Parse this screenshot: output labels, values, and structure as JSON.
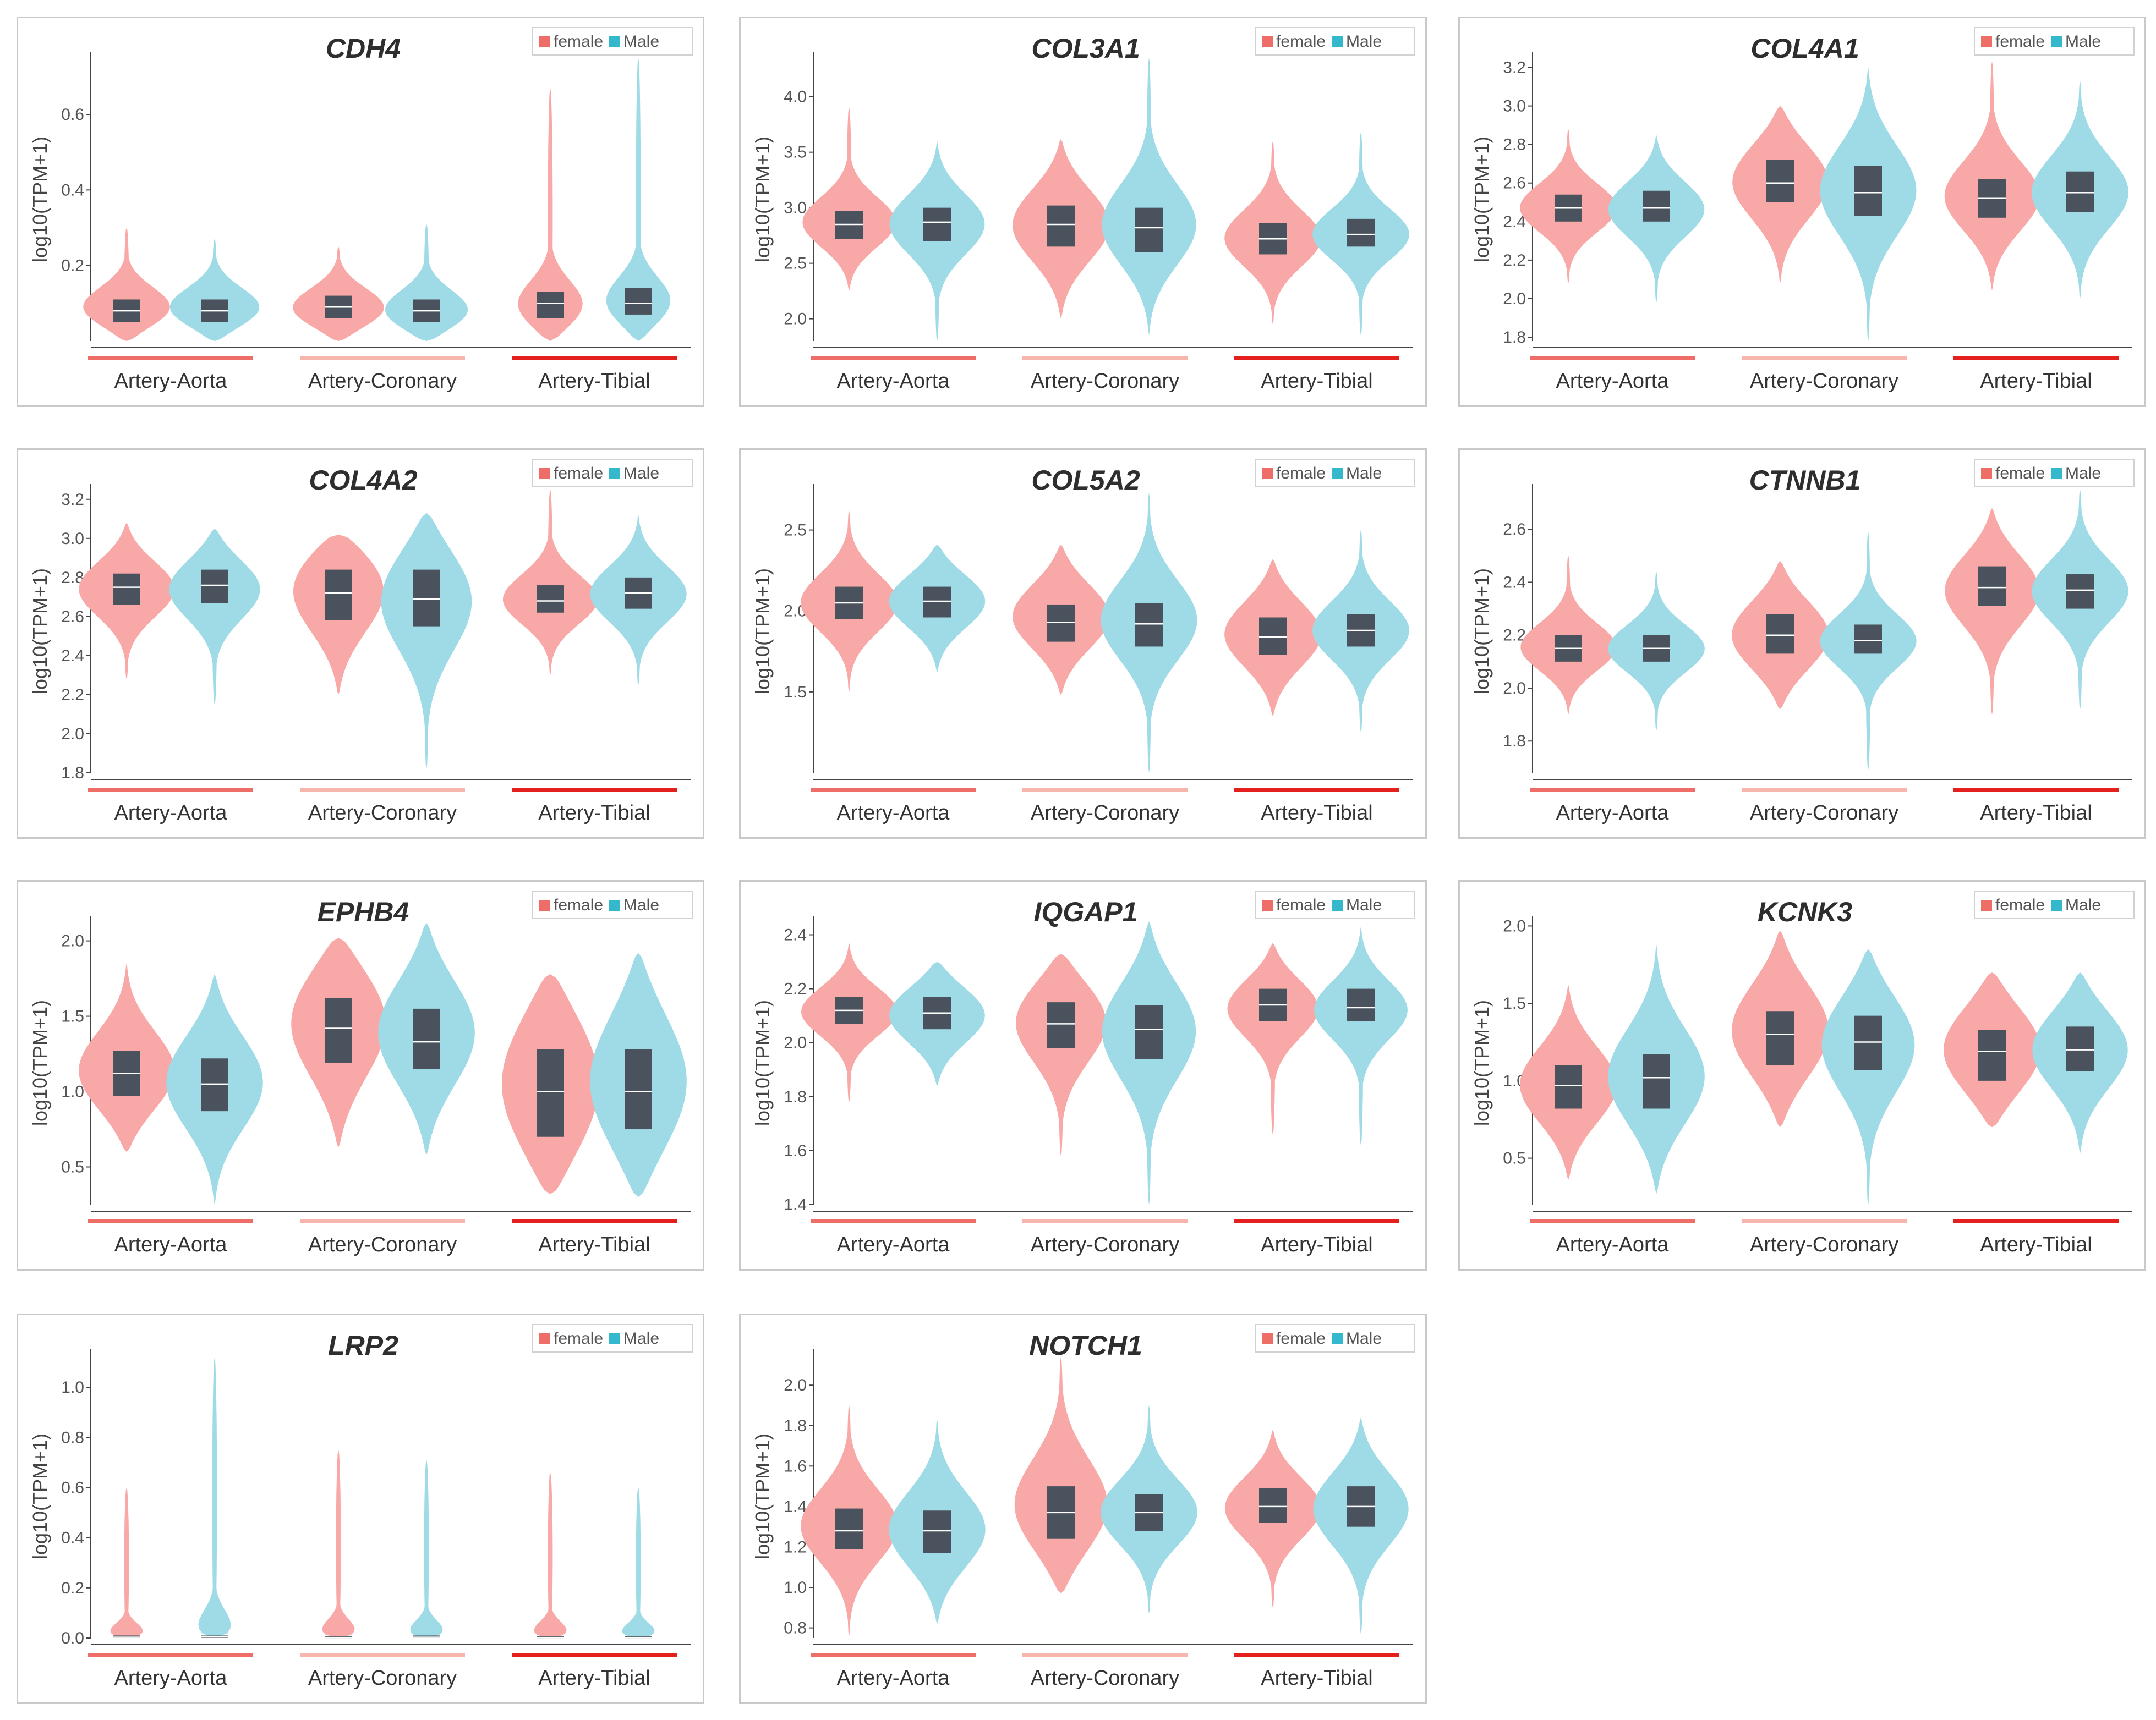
{
  "colors": {
    "female": "#f8a8a6",
    "male": "#9fdbe6",
    "female_swatch": "#ef6d67",
    "male_swatch": "#33b8cc",
    "box": "#4a535d",
    "aorta_line": "#ef6d67",
    "coronary_line": "#f6b5ad",
    "tibial_line": "#e4201e"
  },
  "legend": {
    "female": "female",
    "male": "Male"
  },
  "ylabel": "log10(TPM+1)",
  "tissues": [
    "Artery-Aorta",
    "Artery-Coronary",
    "Artery-Tibial"
  ],
  "chart_data": [
    {
      "type": "violin",
      "title": "CDH4",
      "ylabel": "log10(TPM+1)",
      "ylim": [
        0.0,
        0.75
      ],
      "yticks": [
        "0.2",
        "0.4",
        "0.6"
      ],
      "categories": [
        "Artery-Aorta",
        "Artery-Coronary",
        "Artery-Tibial"
      ],
      "series": [
        {
          "name": "female",
          "groups": [
            {
              "min": 0.0,
              "max": 0.3,
              "q1": 0.05,
              "median": 0.08,
              "q3": 0.11,
              "mode": 0.08
            },
            {
              "min": 0.0,
              "max": 0.25,
              "q1": 0.06,
              "median": 0.09,
              "q3": 0.12,
              "mode": 0.08
            },
            {
              "min": 0.0,
              "max": 0.67,
              "q1": 0.06,
              "median": 0.1,
              "q3": 0.13,
              "mode": 0.08
            }
          ]
        },
        {
          "name": "Male",
          "groups": [
            {
              "min": 0.0,
              "max": 0.27,
              "q1": 0.05,
              "median": 0.08,
              "q3": 0.11,
              "mode": 0.08
            },
            {
              "min": 0.0,
              "max": 0.31,
              "q1": 0.05,
              "median": 0.08,
              "q3": 0.11,
              "mode": 0.07
            },
            {
              "min": 0.0,
              "max": 0.75,
              "q1": 0.07,
              "median": 0.1,
              "q3": 0.14,
              "mode": 0.09
            }
          ]
        }
      ]
    },
    {
      "type": "violin",
      "title": "COL3A1",
      "ylabel": "log10(TPM+1)",
      "ylim": [
        1.8,
        4.35
      ],
      "yticks": [
        "2.0",
        "2.5",
        "3.0",
        "3.5",
        "4.0"
      ],
      "categories": [
        "Artery-Aorta",
        "Artery-Coronary",
        "Artery-Tibial"
      ],
      "series": [
        {
          "name": "female",
          "groups": [
            {
              "min": 2.25,
              "max": 3.9,
              "q1": 2.72,
              "median": 2.85,
              "q3": 2.97,
              "mode": 2.85
            },
            {
              "min": 2.0,
              "max": 3.62,
              "q1": 2.65,
              "median": 2.85,
              "q3": 3.02,
              "mode": 2.85
            },
            {
              "min": 1.95,
              "max": 3.6,
              "q1": 2.58,
              "median": 2.72,
              "q3": 2.86,
              "mode": 2.72
            }
          ]
        },
        {
          "name": "Male",
          "groups": [
            {
              "min": 1.8,
              "max": 3.6,
              "q1": 2.7,
              "median": 2.87,
              "q3": 3.0,
              "mode": 2.87
            },
            {
              "min": 1.85,
              "max": 4.35,
              "q1": 2.6,
              "median": 2.82,
              "q3": 3.0,
              "mode": 2.82
            },
            {
              "min": 1.85,
              "max": 3.68,
              "q1": 2.65,
              "median": 2.76,
              "q3": 2.9,
              "mode": 2.76
            }
          ]
        }
      ]
    },
    {
      "type": "violin",
      "title": "COL4A1",
      "ylabel": "log10(TPM+1)",
      "ylim": [
        1.78,
        3.25
      ],
      "yticks": [
        "1.8",
        "2.0",
        "2.2",
        "2.4",
        "2.6",
        "2.8",
        "3.0",
        "3.2"
      ],
      "categories": [
        "Artery-Aorta",
        "Artery-Coronary",
        "Artery-Tibial"
      ],
      "series": [
        {
          "name": "female",
          "groups": [
            {
              "min": 2.08,
              "max": 2.88,
              "q1": 2.4,
              "median": 2.47,
              "q3": 2.54,
              "mode": 2.47
            },
            {
              "min": 2.08,
              "max": 3.0,
              "q1": 2.5,
              "median": 2.6,
              "q3": 2.72,
              "mode": 2.62
            },
            {
              "min": 2.04,
              "max": 3.23,
              "q1": 2.42,
              "median": 2.52,
              "q3": 2.62,
              "mode": 2.52
            }
          ]
        },
        {
          "name": "Male",
          "groups": [
            {
              "min": 1.98,
              "max": 2.85,
              "q1": 2.4,
              "median": 2.47,
              "q3": 2.56,
              "mode": 2.47
            },
            {
              "min": 1.78,
              "max": 3.2,
              "q1": 2.43,
              "median": 2.55,
              "q3": 2.69,
              "mode": 2.57
            },
            {
              "min": 2.0,
              "max": 3.13,
              "q1": 2.45,
              "median": 2.55,
              "q3": 2.66,
              "mode": 2.55
            }
          ]
        }
      ]
    },
    {
      "type": "violin",
      "title": "COL4A2",
      "ylabel": "log10(TPM+1)",
      "ylim": [
        1.8,
        3.25
      ],
      "yticks": [
        "1.8",
        "2.0",
        "2.2",
        "2.4",
        "2.6",
        "2.8",
        "3.0",
        "3.2"
      ],
      "categories": [
        "Artery-Aorta",
        "Artery-Coronary",
        "Artery-Tibial"
      ],
      "series": [
        {
          "name": "female",
          "groups": [
            {
              "min": 2.28,
              "max": 3.08,
              "q1": 2.66,
              "median": 2.75,
              "q3": 2.82,
              "mode": 2.75
            },
            {
              "min": 2.2,
              "max": 3.02,
              "q1": 2.58,
              "median": 2.72,
              "q3": 2.84,
              "mode": 2.78
            },
            {
              "min": 2.3,
              "max": 3.25,
              "q1": 2.62,
              "median": 2.68,
              "q3": 2.76,
              "mode": 2.68
            }
          ]
        },
        {
          "name": "Male",
          "groups": [
            {
              "min": 2.15,
              "max": 3.05,
              "q1": 2.67,
              "median": 2.76,
              "q3": 2.84,
              "mode": 2.76
            },
            {
              "min": 1.82,
              "max": 3.13,
              "q1": 2.55,
              "median": 2.69,
              "q3": 2.84,
              "mode": 2.72
            },
            {
              "min": 2.25,
              "max": 3.12,
              "q1": 2.64,
              "median": 2.72,
              "q3": 2.8,
              "mode": 2.72
            }
          ]
        }
      ]
    },
    {
      "type": "violin",
      "title": "COL5A2",
      "ylabel": "log10(TPM+1)",
      "ylim": [
        1.0,
        2.75
      ],
      "yticks": [
        "1.5",
        "2.0",
        "2.5"
      ],
      "categories": [
        "Artery-Aorta",
        "Artery-Coronary",
        "Artery-Tibial"
      ],
      "series": [
        {
          "name": "female",
          "groups": [
            {
              "min": 1.5,
              "max": 2.62,
              "q1": 1.95,
              "median": 2.05,
              "q3": 2.15,
              "mode": 2.05
            },
            {
              "min": 1.48,
              "max": 2.41,
              "q1": 1.81,
              "median": 1.93,
              "q3": 2.04,
              "mode": 1.97
            },
            {
              "min": 1.35,
              "max": 2.32,
              "q1": 1.73,
              "median": 1.84,
              "q3": 1.96,
              "mode": 1.86
            }
          ]
        },
        {
          "name": "Male",
          "groups": [
            {
              "min": 1.62,
              "max": 2.41,
              "q1": 1.96,
              "median": 2.06,
              "q3": 2.15,
              "mode": 2.07
            },
            {
              "min": 1.0,
              "max": 2.73,
              "q1": 1.78,
              "median": 1.92,
              "q3": 2.05,
              "mode": 1.95
            },
            {
              "min": 1.25,
              "max": 2.5,
              "q1": 1.78,
              "median": 1.88,
              "q3": 1.98,
              "mode": 1.88
            }
          ]
        }
      ]
    },
    {
      "type": "violin",
      "title": "CTNNB1",
      "ylabel": "log10(TPM+1)",
      "ylim": [
        1.68,
        2.75
      ],
      "yticks": [
        "1.8",
        "2.0",
        "2.2",
        "2.4",
        "2.6"
      ],
      "categories": [
        "Artery-Aorta",
        "Artery-Coronary",
        "Artery-Tibial"
      ],
      "series": [
        {
          "name": "female",
          "groups": [
            {
              "min": 1.9,
              "max": 2.5,
              "q1": 2.1,
              "median": 2.15,
              "q3": 2.2,
              "mode": 2.15
            },
            {
              "min": 1.92,
              "max": 2.48,
              "q1": 2.13,
              "median": 2.2,
              "q3": 2.28,
              "mode": 2.2
            },
            {
              "min": 1.9,
              "max": 2.68,
              "q1": 2.31,
              "median": 2.38,
              "q3": 2.46,
              "mode": 2.38
            }
          ]
        },
        {
          "name": "Male",
          "groups": [
            {
              "min": 1.84,
              "max": 2.44,
              "q1": 2.1,
              "median": 2.15,
              "q3": 2.2,
              "mode": 2.15
            },
            {
              "min": 1.69,
              "max": 2.59,
              "q1": 2.13,
              "median": 2.18,
              "q3": 2.24,
              "mode": 2.18
            },
            {
              "min": 1.92,
              "max": 2.75,
              "q1": 2.3,
              "median": 2.37,
              "q3": 2.43,
              "mode": 2.37
            }
          ]
        }
      ]
    },
    {
      "type": "violin",
      "title": "EPHB4",
      "ylabel": "log10(TPM+1)",
      "ylim": [
        0.25,
        2.13
      ],
      "yticks": [
        "0.5",
        "1.0",
        "1.5",
        "2.0"
      ],
      "categories": [
        "Artery-Aorta",
        "Artery-Coronary",
        "Artery-Tibial"
      ],
      "series": [
        {
          "name": "female",
          "groups": [
            {
              "min": 0.6,
              "max": 1.85,
              "q1": 0.97,
              "median": 1.12,
              "q3": 1.27,
              "mode": 1.12
            },
            {
              "min": 0.63,
              "max": 2.02,
              "q1": 1.19,
              "median": 1.42,
              "q3": 1.62,
              "mode": 1.5
            },
            {
              "min": 0.32,
              "max": 1.78,
              "q1": 0.7,
              "median": 1.0,
              "q3": 1.28,
              "mode": 1.05
            }
          ]
        },
        {
          "name": "Male",
          "groups": [
            {
              "min": 0.25,
              "max": 1.78,
              "q1": 0.87,
              "median": 1.05,
              "q3": 1.22,
              "mode": 1.07
            },
            {
              "min": 0.58,
              "max": 2.12,
              "q1": 1.15,
              "median": 1.33,
              "q3": 1.55,
              "mode": 1.4
            },
            {
              "min": 0.3,
              "max": 1.92,
              "q1": 0.75,
              "median": 1.0,
              "q3": 1.28,
              "mode": 1.05
            }
          ]
        }
      ]
    },
    {
      "type": "violin",
      "title": "IQGAP1",
      "ylabel": "log10(TPM+1)",
      "ylim": [
        1.4,
        2.45
      ],
      "yticks": [
        "1.4",
        "1.6",
        "1.8",
        "2.0",
        "2.2",
        "2.4"
      ],
      "categories": [
        "Artery-Aorta",
        "Artery-Coronary",
        "Artery-Tibial"
      ],
      "series": [
        {
          "name": "female",
          "groups": [
            {
              "min": 1.78,
              "max": 2.37,
              "q1": 2.07,
              "median": 2.12,
              "q3": 2.17,
              "mode": 2.12
            },
            {
              "min": 1.58,
              "max": 2.33,
              "q1": 1.98,
              "median": 2.07,
              "q3": 2.15,
              "mode": 2.1
            },
            {
              "min": 1.66,
              "max": 2.37,
              "q1": 2.08,
              "median": 2.14,
              "q3": 2.2,
              "mode": 2.14
            }
          ]
        },
        {
          "name": "Male",
          "groups": [
            {
              "min": 1.84,
              "max": 2.3,
              "q1": 2.05,
              "median": 2.11,
              "q3": 2.17,
              "mode": 2.11
            },
            {
              "min": 1.4,
              "max": 2.45,
              "q1": 1.94,
              "median": 2.05,
              "q3": 2.14,
              "mode": 2.06
            },
            {
              "min": 1.62,
              "max": 2.43,
              "q1": 2.08,
              "median": 2.13,
              "q3": 2.2,
              "mode": 2.13
            }
          ]
        }
      ]
    },
    {
      "type": "violin",
      "title": "KCNK3",
      "ylabel": "log10(TPM+1)",
      "ylim": [
        0.2,
        2.03
      ],
      "yticks": [
        "0.5",
        "1.0",
        "1.5",
        "2.0"
      ],
      "categories": [
        "Artery-Aorta",
        "Artery-Coronary",
        "Artery-Tibial"
      ],
      "series": [
        {
          "name": "female",
          "groups": [
            {
              "min": 0.36,
              "max": 1.62,
              "q1": 0.82,
              "median": 0.97,
              "q3": 1.1,
              "mode": 0.97
            },
            {
              "min": 0.7,
              "max": 1.97,
              "q1": 1.1,
              "median": 1.3,
              "q3": 1.45,
              "mode": 1.32
            },
            {
              "min": 0.7,
              "max": 1.7,
              "q1": 1.0,
              "median": 1.19,
              "q3": 1.33,
              "mode": 1.2
            }
          ]
        },
        {
          "name": "Male",
          "groups": [
            {
              "min": 0.27,
              "max": 1.88,
              "q1": 0.82,
              "median": 1.02,
              "q3": 1.17,
              "mode": 1.02
            },
            {
              "min": 0.2,
              "max": 1.85,
              "q1": 1.07,
              "median": 1.25,
              "q3": 1.42,
              "mode": 1.27
            },
            {
              "min": 0.53,
              "max": 1.7,
              "q1": 1.06,
              "median": 1.2,
              "q3": 1.35,
              "mode": 1.22
            }
          ]
        }
      ]
    },
    {
      "type": "violin",
      "title": "LRP2",
      "ylabel": "log10(TPM+1)",
      "ylim": [
        0.0,
        1.13
      ],
      "yticks": [
        "0.0",
        "0.2",
        "0.4",
        "0.6",
        "0.8",
        "1.0"
      ],
      "categories": [
        "Artery-Aorta",
        "Artery-Coronary",
        "Artery-Tibial"
      ],
      "series": [
        {
          "name": "female",
          "groups": [
            {
              "min": 0.0,
              "max": 0.6,
              "q1": 0.0,
              "median": 0.003,
              "q3": 0.01,
              "mode": 0.0
            },
            {
              "min": 0.0,
              "max": 0.75,
              "q1": 0.0,
              "median": 0.002,
              "q3": 0.008,
              "mode": 0.0
            },
            {
              "min": 0.0,
              "max": 0.66,
              "q1": 0.0,
              "median": 0.002,
              "q3": 0.008,
              "mode": 0.0
            }
          ]
        },
        {
          "name": "Male",
          "groups": [
            {
              "min": 0.0,
              "max": 1.12,
              "q1": 0.0,
              "median": 0.004,
              "q3": 0.01,
              "mode": 0.0
            },
            {
              "min": 0.0,
              "max": 0.71,
              "q1": 0.0,
              "median": 0.003,
              "q3": 0.01,
              "mode": 0.0
            },
            {
              "min": 0.0,
              "max": 0.6,
              "q1": 0.0,
              "median": 0.002,
              "q3": 0.008,
              "mode": 0.0
            }
          ]
        }
      ]
    },
    {
      "type": "violin",
      "title": "NOTCH1",
      "ylabel": "log10(TPM+1)",
      "ylim": [
        0.75,
        2.15
      ],
      "yticks": [
        "0.8",
        "1.0",
        "1.2",
        "1.4",
        "1.6",
        "1.8",
        "2.0"
      ],
      "categories": [
        "Artery-Aorta",
        "Artery-Coronary",
        "Artery-Tibial"
      ],
      "series": [
        {
          "name": "female",
          "groups": [
            {
              "min": 0.76,
              "max": 1.9,
              "q1": 1.19,
              "median": 1.28,
              "q3": 1.39,
              "mode": 1.3
            },
            {
              "min": 0.97,
              "max": 2.14,
              "q1": 1.24,
              "median": 1.37,
              "q3": 1.5,
              "mode": 1.38
            },
            {
              "min": 0.9,
              "max": 1.78,
              "q1": 1.32,
              "median": 1.4,
              "q3": 1.49,
              "mode": 1.4
            }
          ]
        },
        {
          "name": "Male",
          "groups": [
            {
              "min": 0.82,
              "max": 1.83,
              "q1": 1.17,
              "median": 1.28,
              "q3": 1.38,
              "mode": 1.28
            },
            {
              "min": 0.87,
              "max": 1.9,
              "q1": 1.28,
              "median": 1.37,
              "q3": 1.46,
              "mode": 1.37
            },
            {
              "min": 0.77,
              "max": 1.84,
              "q1": 1.3,
              "median": 1.4,
              "q3": 1.5,
              "mode": 1.4
            }
          ]
        }
      ]
    }
  ]
}
